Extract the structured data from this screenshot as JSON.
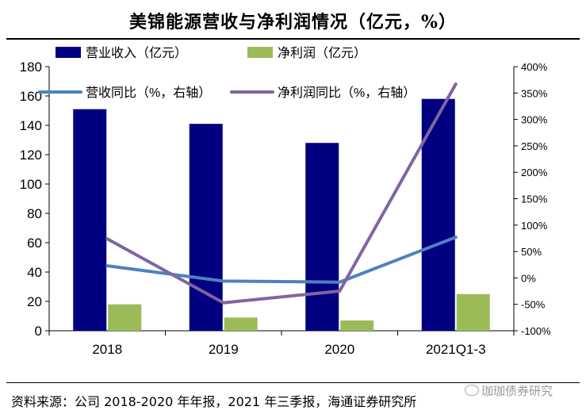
{
  "title": "美锦能源营收与净利润情况（亿元，%）",
  "source": "资料来源：公司 2018-2020 年年报，2021 年三季报，海通证券研究所",
  "watermark": "珈珈债券研究",
  "chart_data": {
    "type": "bar",
    "categories": [
      "2018",
      "2019",
      "2020",
      "2021Q1-3"
    ],
    "series": [
      {
        "name": "营业收入（亿元）",
        "kind": "bar",
        "axis": "left",
        "color": "#000080",
        "values": [
          151,
          141,
          128,
          158
        ]
      },
      {
        "name": "净利润（亿元）",
        "kind": "bar",
        "axis": "left",
        "color": "#9BBB59",
        "values": [
          18,
          9,
          7,
          25
        ]
      },
      {
        "name": "营收同比（%，右轴）",
        "kind": "line",
        "axis": "right",
        "color": "#4F81BD",
        "values": [
          23,
          -6,
          -8,
          77
        ]
      },
      {
        "name": "净利润同比（%，右轴）",
        "kind": "line",
        "axis": "right",
        "color": "#8064A2",
        "values": [
          74,
          -47,
          -25,
          367
        ]
      }
    ],
    "left_axis": {
      "min": 0,
      "max": 180,
      "step": 20,
      "ticks": [
        "0",
        "20",
        "40",
        "60",
        "80",
        "100",
        "120",
        "140",
        "160",
        "180"
      ]
    },
    "right_axis": {
      "min": -100,
      "max": 400,
      "step": 50,
      "ticks": [
        "-100%",
        "-50%",
        "0%",
        "50%",
        "100%",
        "150%",
        "200%",
        "250%",
        "300%",
        "350%",
        "400%"
      ]
    },
    "grid": false,
    "legend": "top"
  }
}
